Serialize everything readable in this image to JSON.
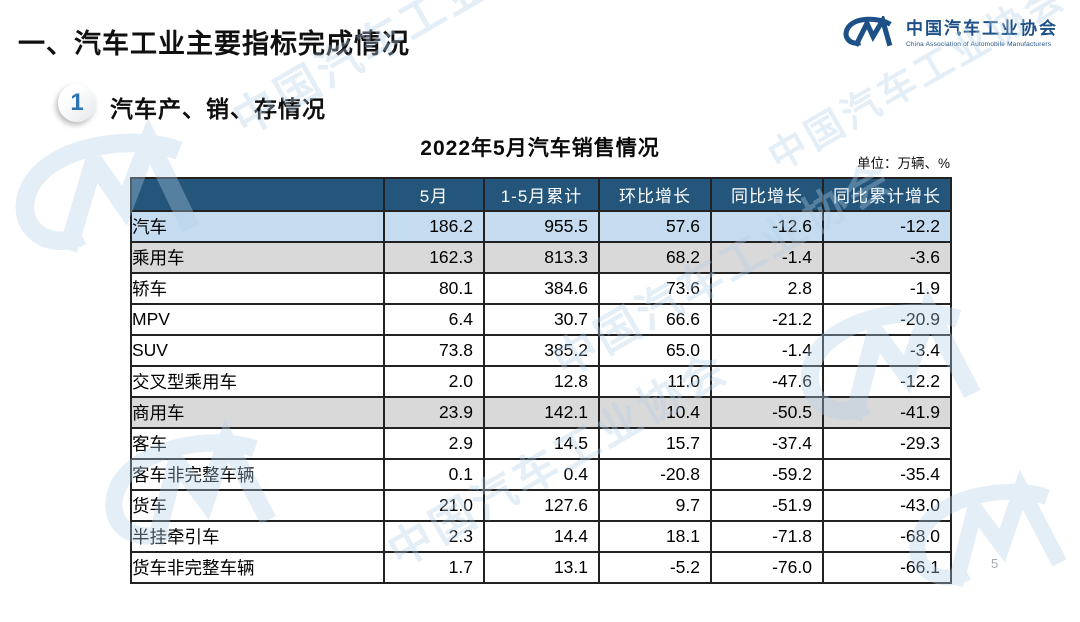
{
  "page": {
    "title": "一、汽车工业主要指标完成情况",
    "page_number": "5"
  },
  "logo": {
    "org_cn": "中国汽车工业协会",
    "org_en": "China Association of Automobile Manufacturers"
  },
  "section": {
    "badge": "1",
    "title": "汽车产、销、存情况"
  },
  "table": {
    "title": "2022年5月汽车销售情况",
    "unit_note": "单位：万辆、%",
    "headers": [
      "",
      "5月",
      "1-5月累计",
      "环比增长",
      "同比增长",
      "同比累计增长"
    ],
    "rows": [
      {
        "label": "汽车",
        "indent": 0,
        "highlight": "blue",
        "values": [
          "186.2",
          "955.5",
          "57.6",
          "-12.6",
          "-12.2"
        ]
      },
      {
        "label": "乘用车",
        "indent": 1,
        "highlight": "gray",
        "values": [
          "162.3",
          "813.3",
          "68.2",
          "-1.4",
          "-3.6"
        ]
      },
      {
        "label": "轿车",
        "indent": 2,
        "highlight": "",
        "values": [
          "80.1",
          "384.6",
          "73.6",
          "2.8",
          "-1.9"
        ]
      },
      {
        "label": "MPV",
        "indent": 2,
        "highlight": "",
        "values": [
          "6.4",
          "30.7",
          "66.6",
          "-21.2",
          "-20.9"
        ]
      },
      {
        "label": "SUV",
        "indent": 2,
        "highlight": "",
        "values": [
          "73.8",
          "385.2",
          "65.0",
          "-1.4",
          "-3.4"
        ]
      },
      {
        "label": "交叉型乘用车",
        "indent": 2,
        "highlight": "",
        "values": [
          "2.0",
          "12.8",
          "11.0",
          "-47.6",
          "-12.2"
        ]
      },
      {
        "label": "商用车",
        "indent": 1,
        "highlight": "gray",
        "values": [
          "23.9",
          "142.1",
          "10.4",
          "-50.5",
          "-41.9"
        ]
      },
      {
        "label": "客车",
        "indent": 2,
        "highlight": "",
        "values": [
          "2.9",
          "14.5",
          "15.7",
          "-37.4",
          "-29.3"
        ]
      },
      {
        "label": "客车非完整车辆",
        "indent": 3,
        "highlight": "",
        "values": [
          "0.1",
          "0.4",
          "-20.8",
          "-59.2",
          "-35.4"
        ]
      },
      {
        "label": "货车",
        "indent": 2,
        "highlight": "",
        "values": [
          "21.0",
          "127.6",
          "9.7",
          "-51.9",
          "-43.0"
        ]
      },
      {
        "label": "半挂牵引车",
        "indent": 3,
        "highlight": "",
        "values": [
          "2.3",
          "14.4",
          "18.1",
          "-71.8",
          "-68.0"
        ]
      },
      {
        "label": "货车非完整车辆",
        "indent": 3,
        "highlight": "",
        "values": [
          "1.7",
          "13.1",
          "-5.2",
          "-76.0",
          "-66.1"
        ]
      }
    ]
  },
  "watermark": {
    "text": "中国汽车工业协会"
  },
  "colors": {
    "header_bg": "#24557A",
    "row_blue": "#C5DCF0",
    "row_gray": "#D9D9D9",
    "logo_blue": "#1D5087",
    "badge_blue": "#2E74B5",
    "watermark": "#B5D0E8"
  }
}
